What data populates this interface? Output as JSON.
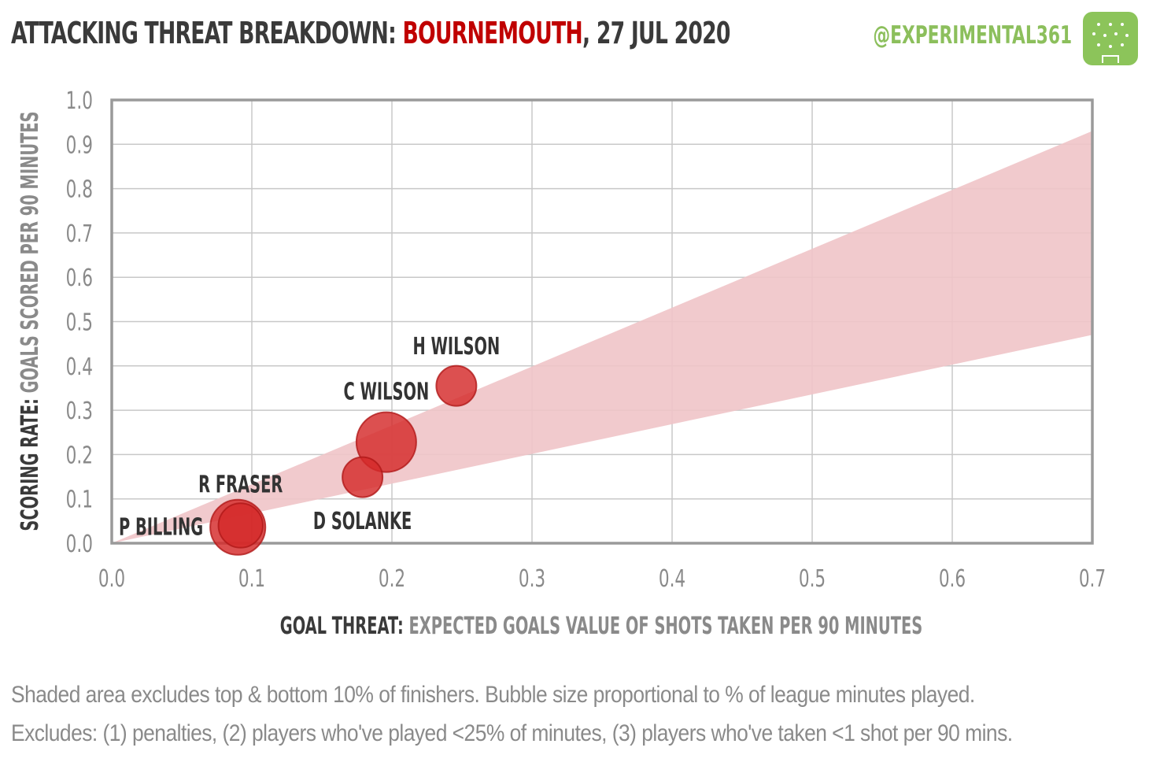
{
  "header": {
    "title_prefix": "ATTACKING THREAT BREAKDOWN: ",
    "team": "BOURNEMOUTH",
    "date": ", 27 JUL 2020",
    "handle": "@EXPERIMENTAL361",
    "logo_icon": "pitch-logo-icon",
    "team_color": "#c00000",
    "handle_color": "#8cbf5c"
  },
  "chart_data": {
    "type": "scatter",
    "xlabel_bold": "GOAL THREAT:",
    "xlabel_rest": "EXPECTED GOALS VALUE OF SHOTS  TAKEN PER 90 MINUTES",
    "ylabel_bold": "SCORING RATE:",
    "ylabel_rest": "GOALS SCORED PER 90 MINUTES",
    "xlim": [
      0,
      0.7
    ],
    "ylim": [
      0,
      1.0
    ],
    "x_ticks": [
      "0.0",
      "0.1",
      "0.2",
      "0.3",
      "0.4",
      "0.5",
      "0.6",
      "0.7"
    ],
    "y_ticks": [
      "0.0",
      "0.1",
      "0.2",
      "0.3",
      "0.4",
      "0.5",
      "0.6",
      "0.7",
      "0.8",
      "0.9",
      "1.0"
    ],
    "grid": true,
    "band": {
      "upper_at_xmax": 0.93,
      "lower_at_xmax": 0.47,
      "color": "#f0c4c8"
    },
    "bubble_color": "#d42a2a",
    "points": [
      {
        "label": "H WILSON",
        "x": 0.246,
        "y": 0.355,
        "size": 0.45
      },
      {
        "label": "C WILSON",
        "x": 0.196,
        "y": 0.228,
        "size": 1.0
      },
      {
        "label": "D SOLANKE",
        "x": 0.179,
        "y": 0.149,
        "size": 0.45
      },
      {
        "label": "R FRASER",
        "x": 0.092,
        "y": 0.04,
        "size": 0.55
      },
      {
        "label": "P BILLING",
        "x": 0.09,
        "y": 0.036,
        "size": 0.85
      }
    ]
  },
  "footnotes": {
    "line1": "Shaded area excludes top & bottom  10% of finishers. Bubble size proportional to % of league minutes played.",
    "line2": "Excludes: (1) penalties, (2) players who've played <25% of minutes, (3) players who've taken <1 shot per 90 mins."
  }
}
